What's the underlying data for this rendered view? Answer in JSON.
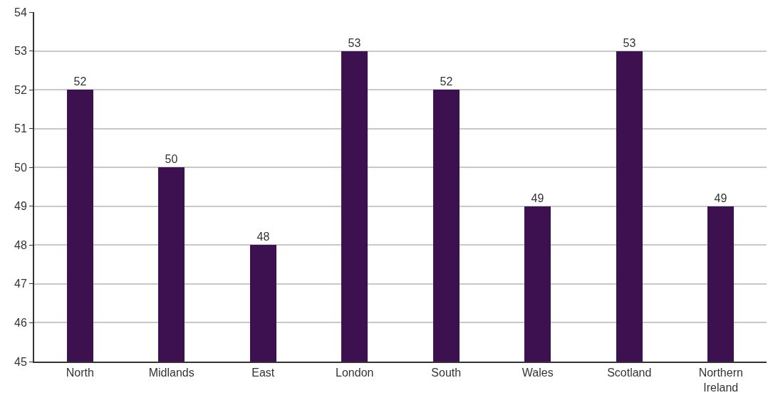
{
  "chart_data": {
    "type": "bar",
    "categories": [
      "North",
      "Midlands",
      "East",
      "London",
      "South",
      "Wales",
      "Scotland",
      "Northern Ireland"
    ],
    "values": [
      52,
      50,
      48,
      53,
      52,
      49,
      53,
      49
    ],
    "color": "#3d1150",
    "ylim": [
      45,
      54
    ],
    "yticks": [
      45,
      46,
      47,
      48,
      49,
      50,
      51,
      52,
      53,
      54
    ],
    "grid": "y",
    "data_labels": true
  }
}
